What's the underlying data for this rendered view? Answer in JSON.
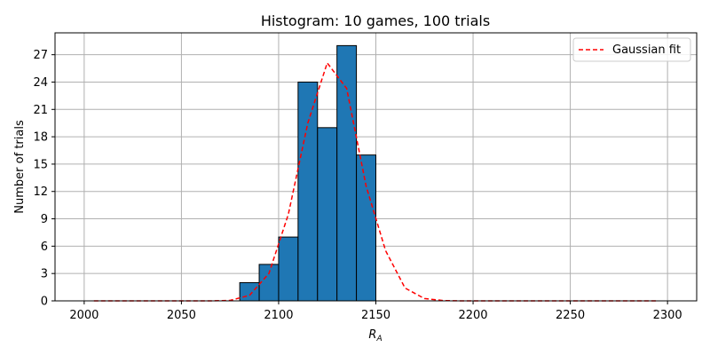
{
  "chart_data": {
    "type": "bar",
    "title": "Histogram: 10 games, 100 trials",
    "xlabel_main": "R",
    "xlabel_sub": "A",
    "ylabel": "Number of trials",
    "xlim": [
      1985,
      2315
    ],
    "ylim": [
      0,
      29.4
    ],
    "xticks": [
      2000,
      2050,
      2100,
      2150,
      2200,
      2250,
      2300
    ],
    "yticks": [
      0,
      3,
      6,
      9,
      12,
      15,
      18,
      21,
      24,
      27
    ],
    "grid": true,
    "legend_position": "top-right",
    "bar_color": "#1f77b4",
    "bar_edge_color": "#000000",
    "bins": [
      {
        "start": 2080,
        "end": 2090,
        "count": 2
      },
      {
        "start": 2090,
        "end": 2100,
        "count": 4
      },
      {
        "start": 2100,
        "end": 2110,
        "count": 7
      },
      {
        "start": 2110,
        "end": 2120,
        "count": 24
      },
      {
        "start": 2120,
        "end": 2130,
        "count": 19
      },
      {
        "start": 2130,
        "end": 2140,
        "count": 28
      },
      {
        "start": 2140,
        "end": 2150,
        "count": 16
      }
    ],
    "series": [
      {
        "name": "Gaussian fit",
        "color": "#ff0000",
        "style": "dashed",
        "x": [
          2005,
          2015,
          2025,
          2035,
          2045,
          2055,
          2065,
          2075,
          2085,
          2095,
          2105,
          2115,
          2125,
          2135,
          2145,
          2155,
          2165,
          2175,
          2185,
          2195,
          2205,
          2215,
          2225,
          2235,
          2245,
          2255,
          2265,
          2275,
          2285,
          2295
        ],
        "y": [
          0,
          0,
          0,
          0,
          0,
          0,
          0,
          0.05,
          0.6,
          3.0,
          9.5,
          19.5,
          26.1,
          23.3,
          12.6,
          5.5,
          1.4,
          0.25,
          0.03,
          0,
          0,
          0,
          0,
          0,
          0,
          0,
          0,
          0,
          0,
          0
        ]
      }
    ]
  }
}
